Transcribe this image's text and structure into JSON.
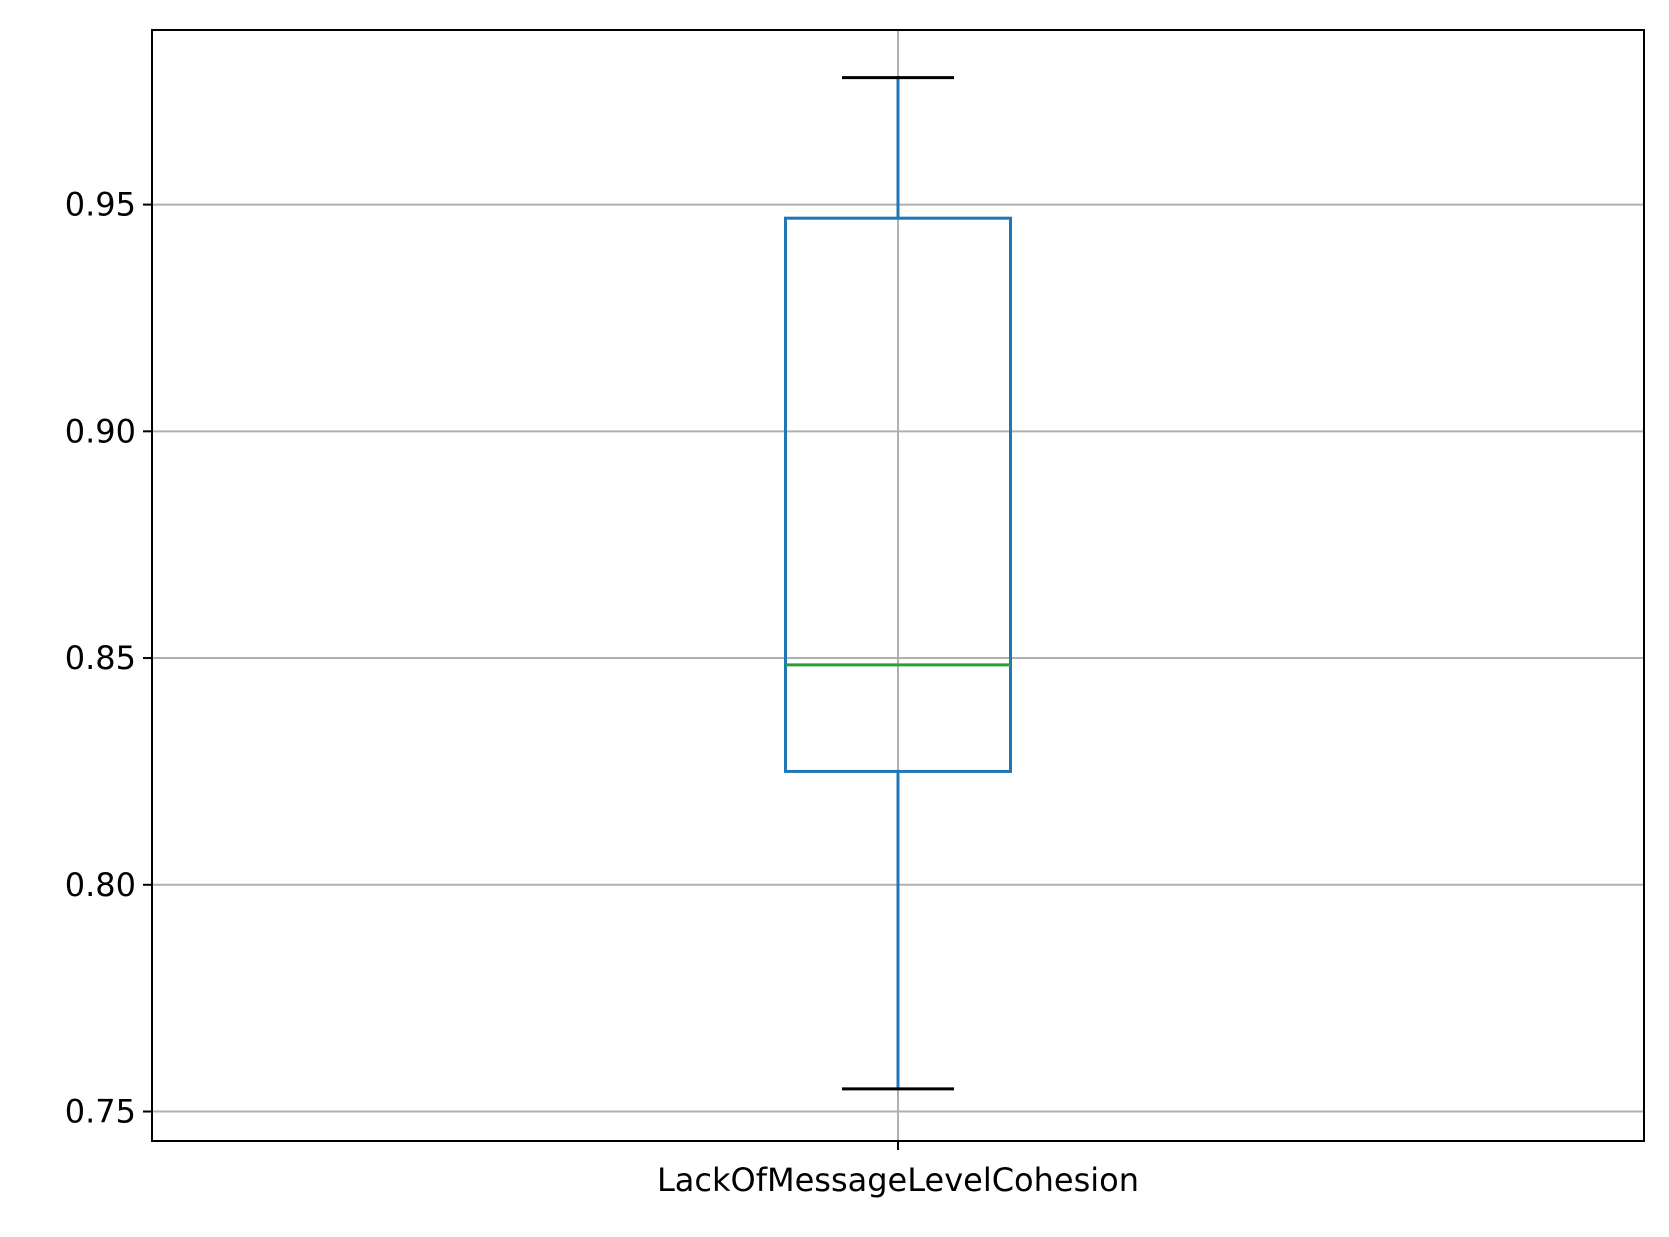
{
  "chart_data": {
    "type": "box",
    "title": "",
    "xlabel": "",
    "ylabel": "",
    "categories": [
      "LackOfMessageLevelCohesion"
    ],
    "boxes": [
      {
        "category": "LackOfMessageLevelCohesion",
        "whisker_low": 0.755,
        "q1": 0.825,
        "median": 0.8485,
        "q3": 0.947,
        "whisker_high": 0.978
      }
    ],
    "ylim": [
      0.7435,
      0.9885
    ],
    "yticks": [
      0.75,
      0.8,
      0.85,
      0.9,
      0.95
    ],
    "ytick_labels": [
      "0.75",
      "0.80",
      "0.85",
      "0.90",
      "0.95"
    ],
    "grid": true,
    "colors": {
      "box": "#1f77b4",
      "median": "#2ca02c",
      "caps": "#000000",
      "grid": "#b0b0b0",
      "axes": "#000000"
    }
  }
}
